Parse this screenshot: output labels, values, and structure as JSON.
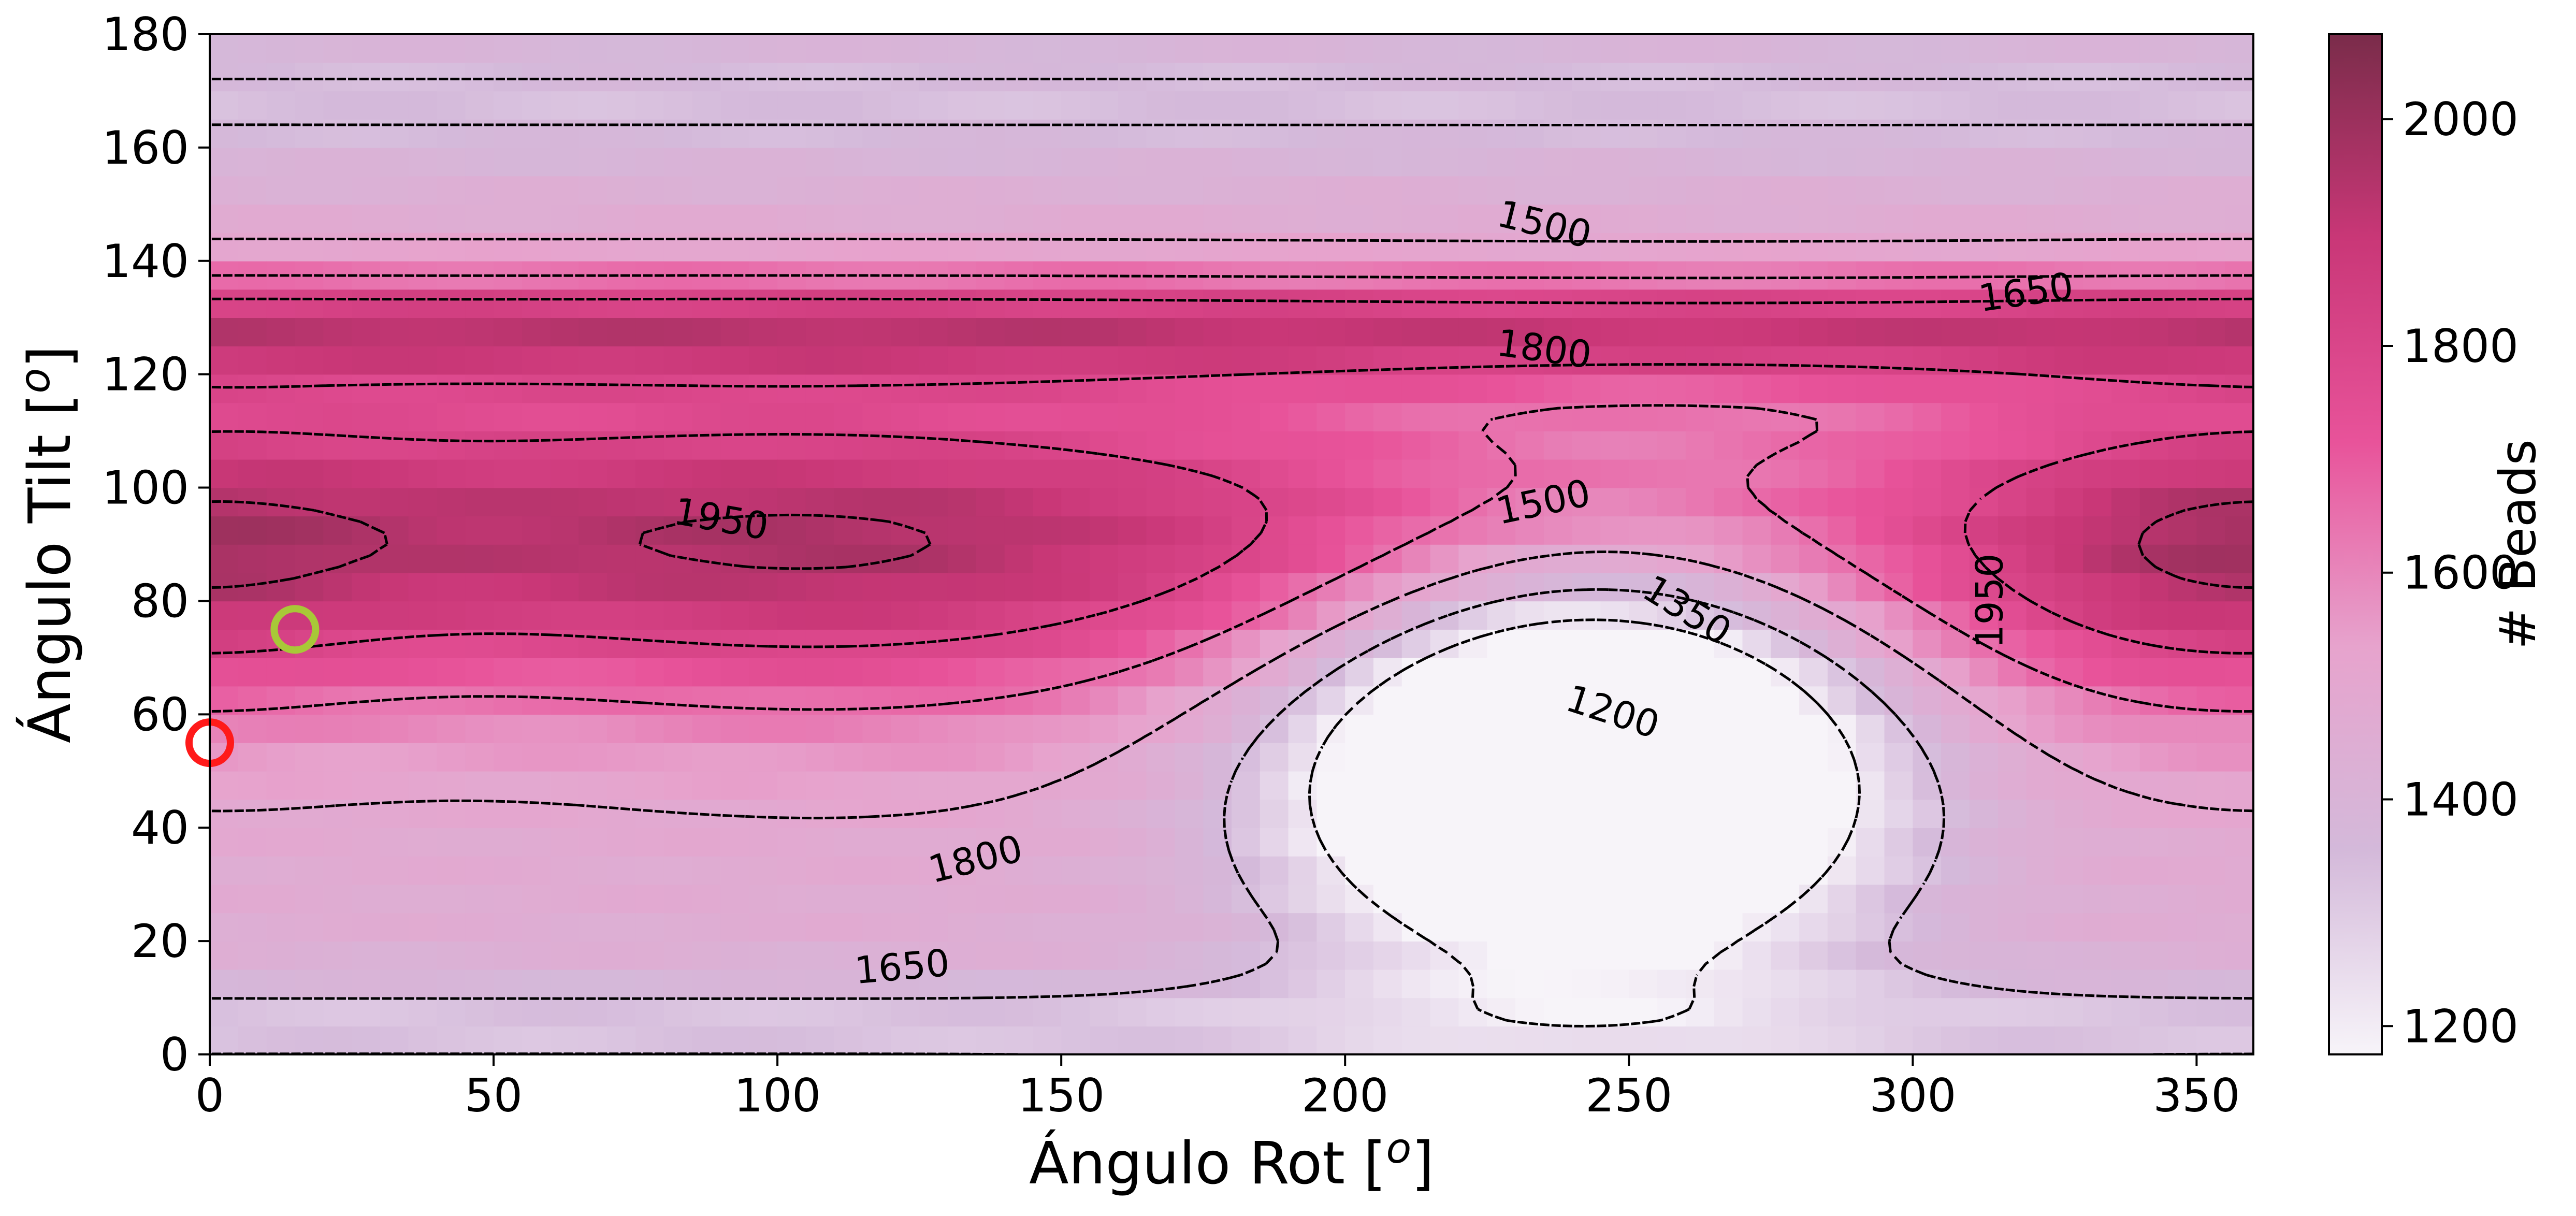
{
  "chart_data": {
    "type": "heatmap",
    "title": "",
    "xlabel_prefix": "Ángulo Rot [",
    "xlabel_sup": "o",
    "xlabel_suffix": "]",
    "ylabel_prefix": "Ángulo Tilt [",
    "ylabel_sup": "o",
    "ylabel_suffix": "]",
    "xlim": [
      0,
      360
    ],
    "ylim": [
      0,
      180
    ],
    "x_ticks": [
      0,
      50,
      100,
      150,
      200,
      250,
      300,
      350
    ],
    "y_ticks": [
      0,
      20,
      40,
      60,
      80,
      100,
      120,
      140,
      160,
      180
    ],
    "colorbar": {
      "label": "# Beads",
      "range": [
        1175,
        2075
      ],
      "ticks": [
        1200,
        1400,
        1600,
        1800,
        2000
      ],
      "colors": [
        "#f7f4f9",
        "#d4b9da",
        "#e7a3cd",
        "#e8539a",
        "#c93777",
        "#7a2c4a"
      ]
    },
    "grid": false,
    "contour_levels": [
      1200,
      1350,
      1500,
      1650,
      1800,
      1950
    ],
    "contour_labels": [
      {
        "text": "1500",
        "x": 235,
        "y": 146,
        "rot": 14
      },
      {
        "text": "1650",
        "x": 320,
        "y": 134,
        "rot": -8
      },
      {
        "text": "1800",
        "x": 235,
        "y": 124,
        "rot": 8
      },
      {
        "text": "1950",
        "x": 90,
        "y": 94,
        "rot": 10
      },
      {
        "text": "1500",
        "x": 235,
        "y": 97,
        "rot": -12
      },
      {
        "text": "1350",
        "x": 260,
        "y": 78,
        "rot": 32
      },
      {
        "text": "1200",
        "x": 247,
        "y": 60,
        "rot": 18
      },
      {
        "text": "1950",
        "x": 314,
        "y": 80,
        "rot": -90
      },
      {
        "text": "1800",
        "x": 135,
        "y": 34,
        "rot": -14
      },
      {
        "text": "1650",
        "x": 122,
        "y": 15,
        "rot": -5
      }
    ],
    "markers": [
      {
        "name": "green-circle-marker",
        "x": 15,
        "y": 75,
        "color": "#a8c838"
      },
      {
        "name": "red-circle-marker",
        "x": 0,
        "y": 55,
        "color": "#ff1a1a"
      }
    ]
  }
}
